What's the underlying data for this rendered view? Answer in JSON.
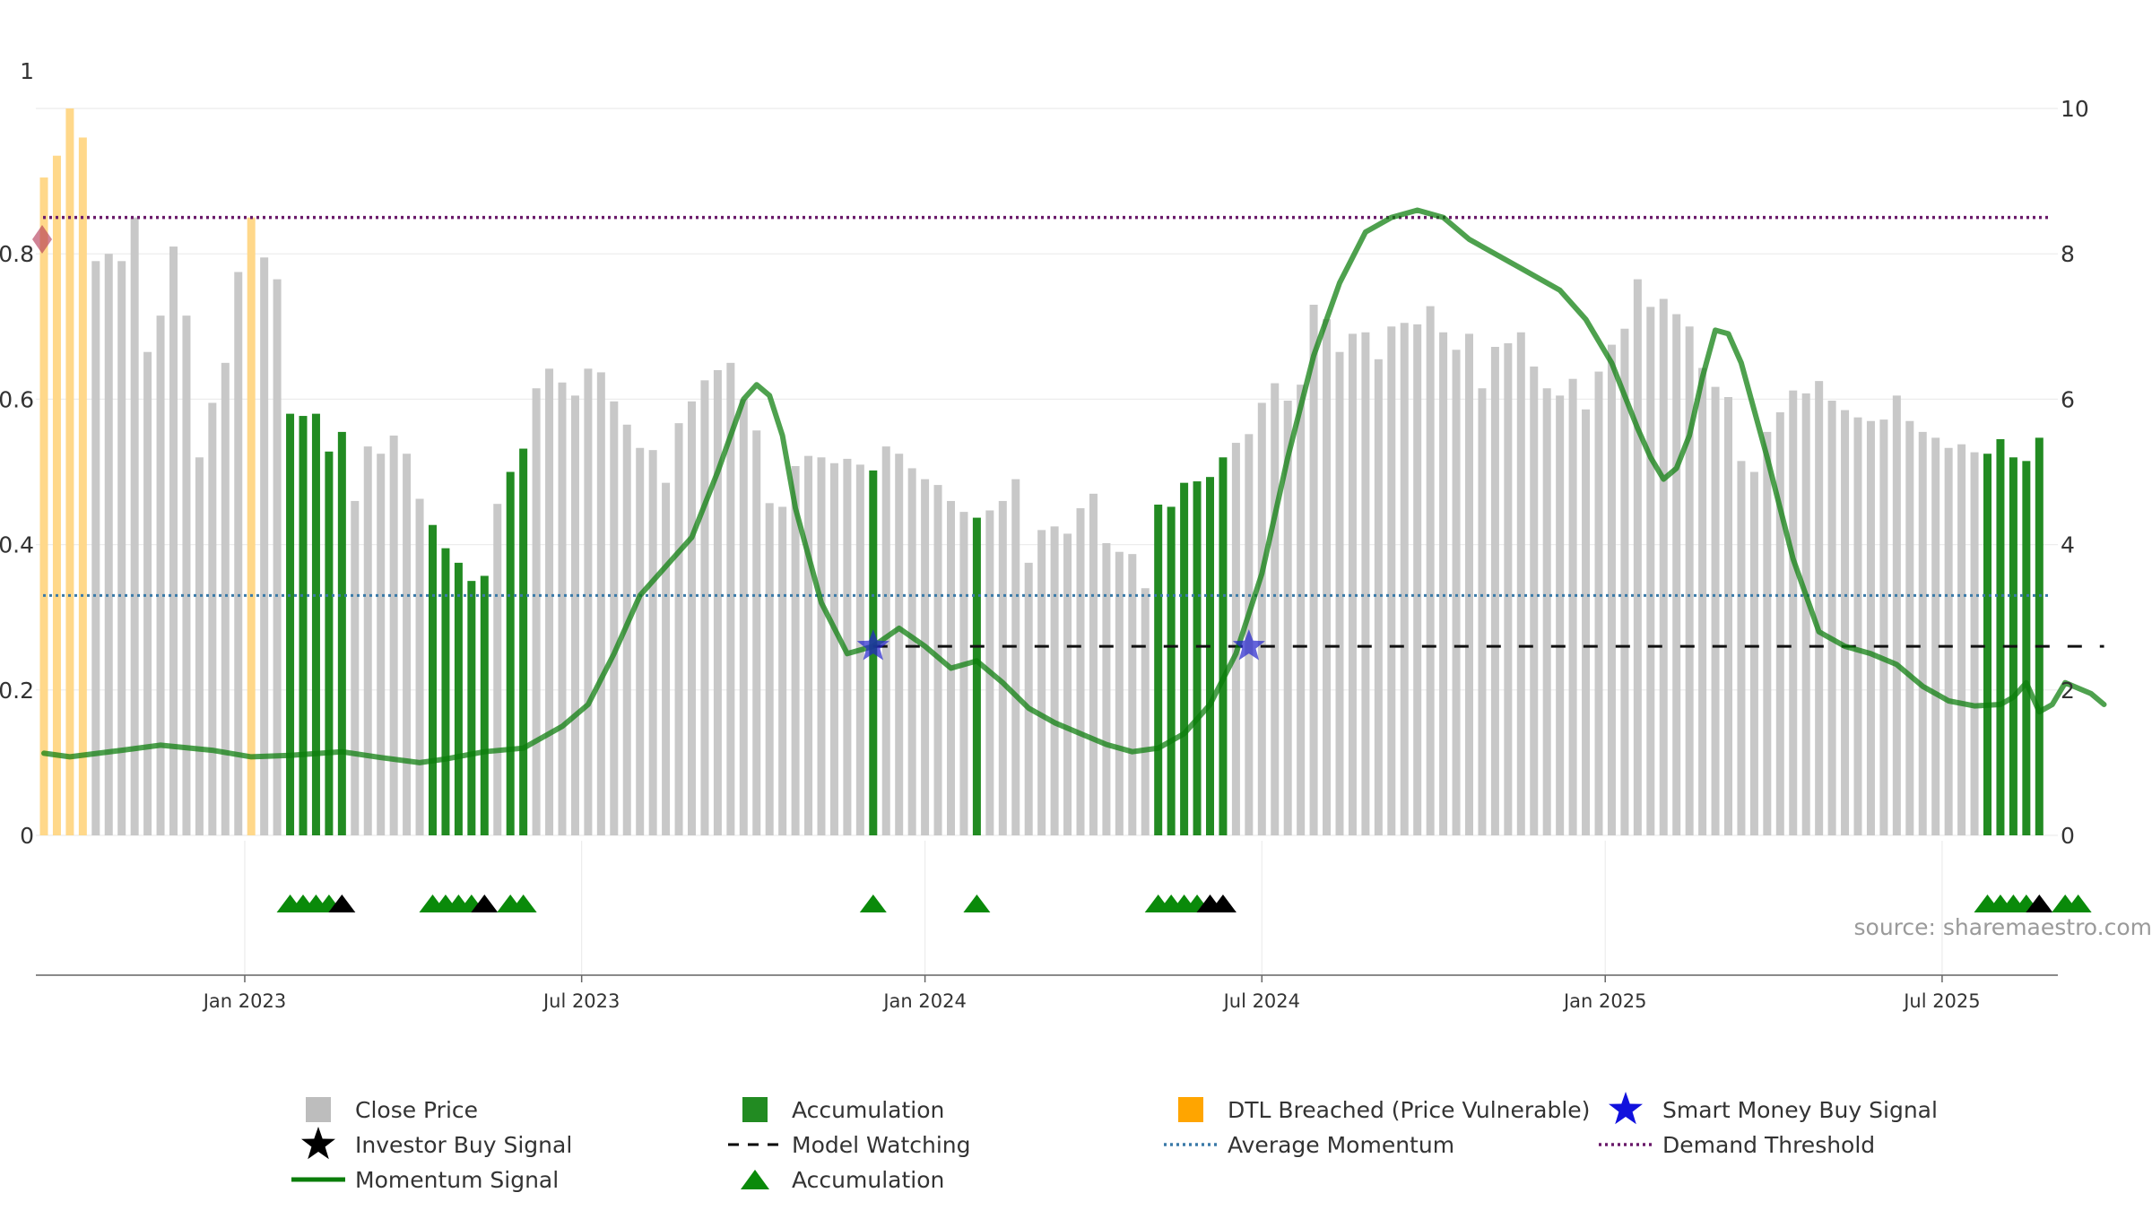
{
  "source_label": "source: sharemaestro.com",
  "chart_data": {
    "type": "bar",
    "left_axis": {
      "ylim": [
        0,
        1
      ],
      "ticks": [
        "0",
        "0.2",
        "0.4",
        "0.6",
        "0.8",
        "1"
      ]
    },
    "right_axis": {
      "ylim": [
        0,
        10
      ],
      "ticks": [
        "0",
        "2",
        "4",
        "6",
        "8",
        "10"
      ]
    },
    "x_ticks": [
      {
        "label": "Jan 2023",
        "week": 15.5
      },
      {
        "label": "Jul 2023",
        "week": 41.5
      },
      {
        "label": "Jan 2024",
        "week": 68
      },
      {
        "label": "Jul 2024",
        "week": 94
      },
      {
        "label": "Jan 2025",
        "week": 120.5
      },
      {
        "label": "Jul 2025",
        "week": 146.5
      }
    ],
    "colors": {
      "close": "#c8c8c8",
      "accumulation": "#228b22",
      "dtl": "#ffd88a",
      "momentum": "#0a7d0a",
      "average": "#3a7aa8",
      "demand": "#6a1a6a",
      "watching": "#111111",
      "smart_money": "#2222cc",
      "investor": "#000000",
      "triangle": "#0a8a0a"
    },
    "close_price": [
      0.905,
      0.935,
      1.0,
      0.96,
      0.79,
      0.8,
      0.79,
      0.85,
      0.665,
      0.715,
      0.81,
      0.715,
      0.52,
      0.595,
      0.65,
      0.775,
      0.85,
      0.795,
      0.765,
      0.58,
      0.577,
      0.58,
      0.528,
      0.555,
      0.46,
      0.535,
      0.525,
      0.55,
      0.525,
      0.463,
      0.427,
      0.395,
      0.375,
      0.35,
      0.357,
      0.456,
      0.5,
      0.532,
      0.615,
      0.642,
      0.623,
      0.605,
      0.642,
      0.637,
      0.597,
      0.565,
      0.533,
      0.53,
      0.485,
      0.567,
      0.597,
      0.626,
      0.64,
      0.65,
      0.6,
      0.557,
      0.457,
      0.452,
      0.508,
      0.522,
      0.52,
      0.512,
      0.518,
      0.51,
      0.502,
      0.535,
      0.525,
      0.505,
      0.49,
      0.482,
      0.46,
      0.445,
      0.437,
      0.447,
      0.46,
      0.49,
      0.375,
      0.42,
      0.425,
      0.415,
      0.45,
      0.47,
      0.402,
      0.39,
      0.387,
      0.34,
      0.455,
      0.452,
      0.485,
      0.487,
      0.493,
      0.52,
      0.54,
      0.552,
      0.595,
      0.622,
      0.598,
      0.62,
      0.73,
      0.71,
      0.665,
      0.69,
      0.692,
      0.655,
      0.7,
      0.705,
      0.703,
      0.728,
      0.692,
      0.668,
      0.69,
      0.615,
      0.672,
      0.677,
      0.692,
      0.645,
      0.615,
      0.605,
      0.628,
      0.586,
      0.638,
      0.675,
      0.697,
      0.765,
      0.727,
      0.738,
      0.717,
      0.7,
      0.643,
      0.617,
      0.603,
      0.515,
      0.5,
      0.555,
      0.582,
      0.612,
      0.608,
      0.625,
      0.598,
      0.585,
      0.575,
      0.57,
      0.572,
      0.605,
      0.57,
      0.555,
      0.547,
      0.533,
      0.538,
      0.527,
      0.525,
      0.545,
      0.52,
      0.515,
      0.547
    ],
    "bar_heights": [
      0.905,
      0.935,
      1.0,
      0.96,
      0.79,
      0.8,
      0.79,
      0.85,
      0.665,
      0.715,
      0.81,
      0.715,
      0.52,
      0.595,
      0.65,
      0.775,
      0.85,
      0.795,
      0.765,
      0.58,
      0.577,
      0.58,
      0.528,
      0.555,
      0.46,
      0.535,
      0.525,
      0.55,
      0.525,
      0.463,
      0.427,
      0.395,
      0.375,
      0.35,
      0.357,
      0.456,
      0.5,
      0.532,
      0.615,
      0.642,
      0.623,
      0.605,
      0.642,
      0.637,
      0.597,
      0.565,
      0.533,
      0.53,
      0.485,
      0.567,
      0.597,
      0.626,
      0.64,
      0.65,
      0.6,
      0.557,
      0.457,
      0.452,
      0.508,
      0.522,
      0.52,
      0.512,
      0.518,
      0.51,
      0.502,
      0.535,
      0.525,
      0.505,
      0.49,
      0.482,
      0.46,
      0.445,
      0.437,
      0.447,
      0.46,
      0.49,
      0.375,
      0.42,
      0.425,
      0.415,
      0.45,
      0.47,
      0.402,
      0.39,
      0.387,
      0.34,
      0.455,
      0.452,
      0.485,
      0.487,
      0.493,
      0.52,
      0.54,
      0.552,
      0.595,
      0.622,
      0.598,
      0.62,
      0.73,
      0.71,
      0.665,
      0.69,
      0.692,
      0.655,
      0.7,
      0.705,
      0.703,
      0.728,
      0.692,
      0.668,
      0.69,
      0.615,
      0.672,
      0.677,
      0.692,
      0.645,
      0.615,
      0.605,
      0.628,
      0.586,
      0.638,
      0.675,
      0.697,
      0.765,
      0.727,
      0.738,
      0.717,
      0.7,
      0.643,
      0.617,
      0.603,
      0.515,
      0.5,
      0.555,
      0.582,
      0.612,
      0.608,
      0.625,
      0.598,
      0.585,
      0.575,
      0.57,
      0.572,
      0.605,
      0.57,
      0.555,
      0.547,
      0.533,
      0.538,
      0.527,
      0.525,
      0.545,
      0.52,
      0.515,
      0.547
    ],
    "dtl_weeks": [
      0,
      1,
      2,
      3,
      16
    ],
    "accumulation_weeks": [
      19,
      20,
      21,
      22,
      23,
      30,
      31,
      32,
      33,
      34,
      36,
      37,
      64,
      72,
      86,
      87,
      88,
      89,
      90,
      91,
      150,
      151,
      152,
      153,
      154,
      155,
      156,
      157,
      158
    ],
    "momentum": [
      [
        0,
        1.13
      ],
      [
        2,
        1.08
      ],
      [
        6,
        1.17
      ],
      [
        9,
        1.24
      ],
      [
        13,
        1.17
      ],
      [
        16,
        1.08
      ],
      [
        19,
        1.1
      ],
      [
        23,
        1.15
      ],
      [
        26,
        1.07
      ],
      [
        29,
        1.0
      ],
      [
        31,
        1.05
      ],
      [
        34,
        1.15
      ],
      [
        37,
        1.2
      ],
      [
        40,
        1.5
      ],
      [
        42,
        1.8
      ],
      [
        44,
        2.5
      ],
      [
        46,
        3.3
      ],
      [
        48,
        3.7
      ],
      [
        50,
        4.1
      ],
      [
        52,
        5.0
      ],
      [
        54,
        6.0
      ],
      [
        55,
        6.2
      ],
      [
        56,
        6.05
      ],
      [
        57,
        5.5
      ],
      [
        58,
        4.5
      ],
      [
        60,
        3.2
      ],
      [
        62,
        2.5
      ],
      [
        64,
        2.6
      ],
      [
        66,
        2.85
      ],
      [
        68,
        2.6
      ],
      [
        70,
        2.3
      ],
      [
        72,
        2.4
      ],
      [
        74,
        2.1
      ],
      [
        76,
        1.75
      ],
      [
        78,
        1.55
      ],
      [
        80,
        1.4
      ],
      [
        82,
        1.25
      ],
      [
        84,
        1.15
      ],
      [
        86,
        1.2
      ],
      [
        88,
        1.4
      ],
      [
        90,
        1.8
      ],
      [
        92,
        2.5
      ],
      [
        94,
        3.6
      ],
      [
        96,
        5.2
      ],
      [
        98,
        6.6
      ],
      [
        100,
        7.6
      ],
      [
        102,
        8.3
      ],
      [
        104,
        8.5
      ],
      [
        106,
        8.6
      ],
      [
        108,
        8.5
      ],
      [
        110,
        8.2
      ],
      [
        114,
        7.8
      ],
      [
        117,
        7.5
      ],
      [
        119,
        7.1
      ],
      [
        121,
        6.5
      ],
      [
        123,
        5.6
      ],
      [
        124,
        5.2
      ],
      [
        125,
        4.9
      ],
      [
        126,
        5.05
      ],
      [
        127,
        5.5
      ],
      [
        128,
        6.3
      ],
      [
        129,
        6.95
      ],
      [
        130,
        6.9
      ],
      [
        131,
        6.5
      ],
      [
        133,
        5.2
      ],
      [
        135,
        3.8
      ],
      [
        137,
        2.8
      ],
      [
        139,
        2.6
      ],
      [
        141,
        2.5
      ],
      [
        143,
        2.35
      ],
      [
        145,
        2.05
      ],
      [
        147,
        1.85
      ],
      [
        149,
        1.78
      ],
      [
        151,
        1.8
      ],
      [
        152,
        1.9
      ],
      [
        153,
        2.1
      ],
      [
        154,
        1.7
      ],
      [
        155,
        1.8
      ],
      [
        156,
        2.1
      ],
      [
        158,
        1.95
      ],
      [
        159,
        1.8
      ]
    ],
    "average_momentum": 3.3,
    "demand_threshold": 8.5,
    "model_watching": {
      "from_week": 64,
      "to_week": 159,
      "level": 2.6
    },
    "smart_money_signals": [
      [
        64,
        2.6
      ],
      [
        93,
        2.6
      ]
    ],
    "demand_marker": {
      "week": 0,
      "value": 0.82
    },
    "signal_triangles": [
      {
        "week": 19,
        "type": "accumulation"
      },
      {
        "week": 20,
        "type": "accumulation"
      },
      {
        "week": 21,
        "type": "accumulation"
      },
      {
        "week": 22,
        "type": "accumulation"
      },
      {
        "week": 23,
        "type": "investor"
      },
      {
        "week": 30,
        "type": "accumulation"
      },
      {
        "week": 31,
        "type": "accumulation"
      },
      {
        "week": 32,
        "type": "accumulation"
      },
      {
        "week": 33,
        "type": "accumulation"
      },
      {
        "week": 34,
        "type": "investor"
      },
      {
        "week": 36,
        "type": "accumulation"
      },
      {
        "week": 37,
        "type": "accumulation"
      },
      {
        "week": 64,
        "type": "accumulation"
      },
      {
        "week": 72,
        "type": "accumulation"
      },
      {
        "week": 86,
        "type": "accumulation"
      },
      {
        "week": 87,
        "type": "accumulation"
      },
      {
        "week": 88,
        "type": "accumulation"
      },
      {
        "week": 89,
        "type": "accumulation"
      },
      {
        "week": 90,
        "type": "investor"
      },
      {
        "week": 91,
        "type": "investor"
      },
      {
        "week": 150,
        "type": "accumulation"
      },
      {
        "week": 151,
        "type": "accumulation"
      },
      {
        "week": 152,
        "type": "accumulation"
      },
      {
        "week": 153,
        "type": "accumulation"
      },
      {
        "week": 154,
        "type": "investor"
      },
      {
        "week": 156,
        "type": "accumulation"
      },
      {
        "week": 157,
        "type": "accumulation"
      }
    ],
    "legend": [
      {
        "label": "Close Price",
        "symbol": "square",
        "color": "#bdbdbd"
      },
      {
        "label": "Accumulation",
        "symbol": "square",
        "color": "#228b22"
      },
      {
        "label": "DTL Breached (Price Vulnerable)",
        "symbol": "square",
        "color": "#ffa500"
      },
      {
        "label": "Smart Money Buy Signal",
        "symbol": "star",
        "color": "#1111dd"
      },
      {
        "label": "Investor Buy Signal",
        "symbol": "star",
        "color": "#000000"
      },
      {
        "label": "Model Watching",
        "symbol": "dash",
        "color": "#000000"
      },
      {
        "label": "Average Momentum",
        "symbol": "dot",
        "color": "#3a7aa8"
      },
      {
        "label": "Demand Threshold",
        "symbol": "dot",
        "color": "#6a1a6a"
      },
      {
        "label": "Momentum Signal",
        "symbol": "line",
        "color": "#0a7d0a"
      },
      {
        "label": "Accumulation",
        "symbol": "triangle",
        "color": "#0a8a0a"
      }
    ]
  }
}
